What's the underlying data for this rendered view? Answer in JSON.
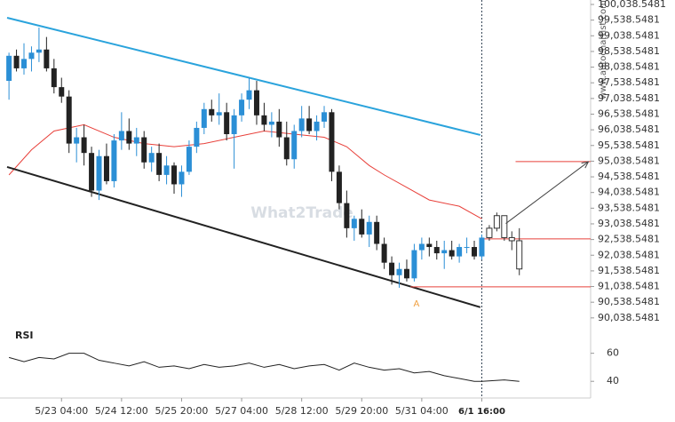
{
  "chart_data": {
    "type": "candlestick",
    "watermark": "What2Trade",
    "source": "www.autochartist.com",
    "pattern_label": "A",
    "indicator_label": "RSI",
    "up_color": "#2b8fd6",
    "down_color": "#222222",
    "ylim": [
      89750,
      100180
    ],
    "xlim": [
      -0.25,
      77.5
    ],
    "yticks": [
      {
        "value": 90038.5481,
        "label": "90,038.5481"
      },
      {
        "value": 90538.5481,
        "label": "90,538.5481"
      },
      {
        "value": 91038.5481,
        "label": "91,038.5481"
      },
      {
        "value": 91538.5481,
        "label": "91,538.5481"
      },
      {
        "value": 92038.5481,
        "label": "92,038.5481"
      },
      {
        "value": 92538.5481,
        "label": "92,538.5481"
      },
      {
        "value": 93038.5481,
        "label": "93,038.5481"
      },
      {
        "value": 93538.5481,
        "label": "93,538.5481"
      },
      {
        "value": 94038.5481,
        "label": "94,038.5481"
      },
      {
        "value": 94538.5481,
        "label": "94,538.5481"
      },
      {
        "value": 95038.5481,
        "label": "95,038.5481"
      },
      {
        "value": 95538.5481,
        "label": "95,538.5481"
      },
      {
        "value": 96038.5481,
        "label": "96,038.5481"
      },
      {
        "value": 96538.5481,
        "label": "96,538.5481"
      },
      {
        "value": 97038.5481,
        "label": "97,038.5481"
      },
      {
        "value": 97538.5481,
        "label": "97,538.5481"
      },
      {
        "value": 98038.5481,
        "label": "98,038.5481"
      },
      {
        "value": 98538.5481,
        "label": "98,538.5481"
      },
      {
        "value": 99038.5481,
        "label": "99,038.5481"
      },
      {
        "value": 99538.5481,
        "label": "99,538.5481"
      },
      {
        "value": 100038.5481,
        "label": "100,038.5481"
      }
    ],
    "xticks": [
      {
        "value": 7,
        "label": "5/23 04:00"
      },
      {
        "value": 15,
        "label": "5/24 12:00"
      },
      {
        "value": 23,
        "label": "5/25 20:00"
      },
      {
        "value": 31,
        "label": "5/27 04:00"
      },
      {
        "value": 39,
        "label": "5/28 12:00"
      },
      {
        "value": 47,
        "label": "5/29 20:00"
      },
      {
        "value": 55,
        "label": "5/31 04:00"
      },
      {
        "value": 63,
        "label": "6/1 16:00"
      }
    ],
    "current_tick": 7,
    "candles": {
      "x": [
        0,
        1,
        2,
        3,
        4,
        5,
        6,
        7,
        8,
        9,
        10,
        11,
        12,
        13,
        14,
        15,
        16,
        17,
        18,
        19,
        20,
        21,
        22,
        23,
        24,
        25,
        26,
        27,
        28,
        29,
        30,
        31,
        32,
        33,
        34,
        35,
        36,
        37,
        38,
        39,
        40,
        41,
        42,
        43,
        44,
        45,
        46,
        47,
        48,
        49,
        50,
        51,
        52,
        53,
        54,
        55,
        56,
        57,
        58,
        59,
        60,
        61,
        62,
        63
      ],
      "open": [
        97600,
        98400,
        98000,
        98300,
        98500,
        98600,
        98000,
        97400,
        97100,
        95600,
        95800,
        95300,
        94100,
        95200,
        94400,
        95700,
        96000,
        95600,
        95800,
        95000,
        95300,
        94600,
        94900,
        94300,
        94700,
        95500,
        96100,
        96700,
        96500,
        96600,
        95900,
        96500,
        97000,
        97300,
        96500,
        96200,
        96300,
        95800,
        95100,
        96000,
        96400,
        96000,
        96300,
        96600,
        94700,
        93700,
        92900,
        93200,
        92700,
        93100,
        92400,
        91800,
        91400,
        91600,
        91300,
        92200,
        92400,
        92300,
        92100,
        92200,
        92000,
        92300,
        92300,
        92000
      ],
      "high": [
        98500,
        98600,
        98800,
        98700,
        99300,
        99000,
        98300,
        97700,
        97300,
        96100,
        96200,
        95500,
        95400,
        95600,
        95900,
        96600,
        96400,
        96100,
        96000,
        95500,
        95600,
        95200,
        95000,
        94900,
        95700,
        96300,
        96900,
        97000,
        97200,
        96900,
        96700,
        97200,
        97700,
        97600,
        96900,
        96600,
        96700,
        96300,
        96200,
        96800,
        96800,
        96500,
        96800,
        96700,
        94900,
        94100,
        93300,
        93500,
        93300,
        93300,
        92600,
        92000,
        91800,
        91900,
        92400,
        92600,
        92600,
        92500,
        92500,
        92500,
        92400,
        92600,
        92500,
        92700
      ],
      "low": [
        97000,
        97900,
        97800,
        97900,
        98200,
        97900,
        97200,
        96900,
        95300,
        95000,
        94900,
        93900,
        93800,
        94300,
        94200,
        95400,
        95400,
        95200,
        94800,
        94700,
        94400,
        94300,
        94000,
        93900,
        94600,
        95300,
        95900,
        96300,
        96200,
        95700,
        94800,
        96300,
        96700,
        96200,
        96000,
        95800,
        95500,
        94900,
        94800,
        95800,
        95900,
        95700,
        96100,
        94400,
        93500,
        92600,
        92500,
        92600,
        92300,
        92200,
        91600,
        91100,
        91000,
        91200,
        91200,
        91900,
        92000,
        91900,
        91600,
        91900,
        91800,
        92100,
        91900,
        91900
      ],
      "close": [
        98400,
        98000,
        98300,
        98500,
        98600,
        98000,
        97400,
        97100,
        95600,
        95800,
        95300,
        94100,
        95200,
        94400,
        95700,
        96000,
        95600,
        95800,
        95000,
        95300,
        94600,
        94900,
        94300,
        94700,
        95500,
        96100,
        96700,
        96500,
        96600,
        95900,
        96500,
        97000,
        97300,
        96500,
        96200,
        96300,
        95800,
        95100,
        96000,
        96400,
        96000,
        96300,
        96600,
        94700,
        93700,
        92900,
        93200,
        92700,
        93100,
        92400,
        91800,
        91400,
        91600,
        91300,
        92200,
        92400,
        92300,
        92100,
        92200,
        92000,
        92300,
        92300,
        92000,
        92600
      ]
    },
    "projected_candles": {
      "x": [
        64,
        65,
        66,
        67,
        68
      ],
      "open": [
        92600,
        92900,
        93300,
        92600,
        92500
      ],
      "high": [
        93000,
        93400,
        93300,
        92800,
        92900
      ],
      "low": [
        92500,
        92800,
        92500,
        92200,
        91400
      ],
      "close": [
        92900,
        93300,
        92600,
        92500,
        91600
      ]
    },
    "moving_average": {
      "color": "#e8403a",
      "x": [
        0,
        3,
        6,
        10,
        14,
        18,
        22,
        26,
        30,
        34,
        38,
        42,
        45,
        48,
        50,
        53,
        56,
        60,
        63
      ],
      "values": [
        94600,
        95400,
        96000,
        96200,
        95800,
        95600,
        95500,
        95600,
        95800,
        96000,
        95900,
        95800,
        95500,
        94900,
        94600,
        94200,
        93800,
        93600,
        93200
      ]
    },
    "trendlines": [
      {
        "color": "#2aa3dc",
        "x": [
          -0.25,
          62.8
        ],
        "values": [
          99613,
          95874
        ]
      },
      {
        "color": "#222222",
        "x": [
          -0.25,
          62.8
        ],
        "values": [
          94854,
          90379
        ]
      }
    ],
    "levels": [
      {
        "color": "#e8403a",
        "x": [
          53.5,
          77.5
        ],
        "value": 91030
      },
      {
        "color": "#e8403a",
        "x": [
          62.8,
          77.5
        ],
        "value": 92560
      },
      {
        "color": "#e8403a",
        "x": [
          67.5,
          77.5
        ],
        "value": 95025
      }
    ],
    "arrow": {
      "color": "#444444",
      "x": [
        66.2,
        77.2
      ],
      "values": [
        93050,
        95020
      ]
    },
    "pattern_point": {
      "x": 54.3,
      "value": 90480
    },
    "rsi": {
      "ylim": [
        30,
        77.5
      ],
      "yticks": [
        40,
        60
      ],
      "x": [
        0,
        2,
        4,
        6,
        8,
        10,
        12,
        14,
        16,
        18,
        20,
        22,
        24,
        26,
        28,
        30,
        32,
        34,
        36,
        38,
        40,
        42,
        44,
        46,
        48,
        50,
        52,
        54,
        56,
        58,
        60,
        62,
        63,
        66,
        68
      ],
      "values": [
        57,
        54,
        57,
        56,
        60,
        60,
        55,
        53,
        51,
        54,
        50,
        51,
        49,
        52,
        50,
        51,
        53,
        50,
        52,
        49,
        51,
        52,
        48,
        53,
        50,
        48,
        49,
        46,
        47,
        44,
        42,
        40,
        40,
        41,
        40
      ]
    }
  }
}
